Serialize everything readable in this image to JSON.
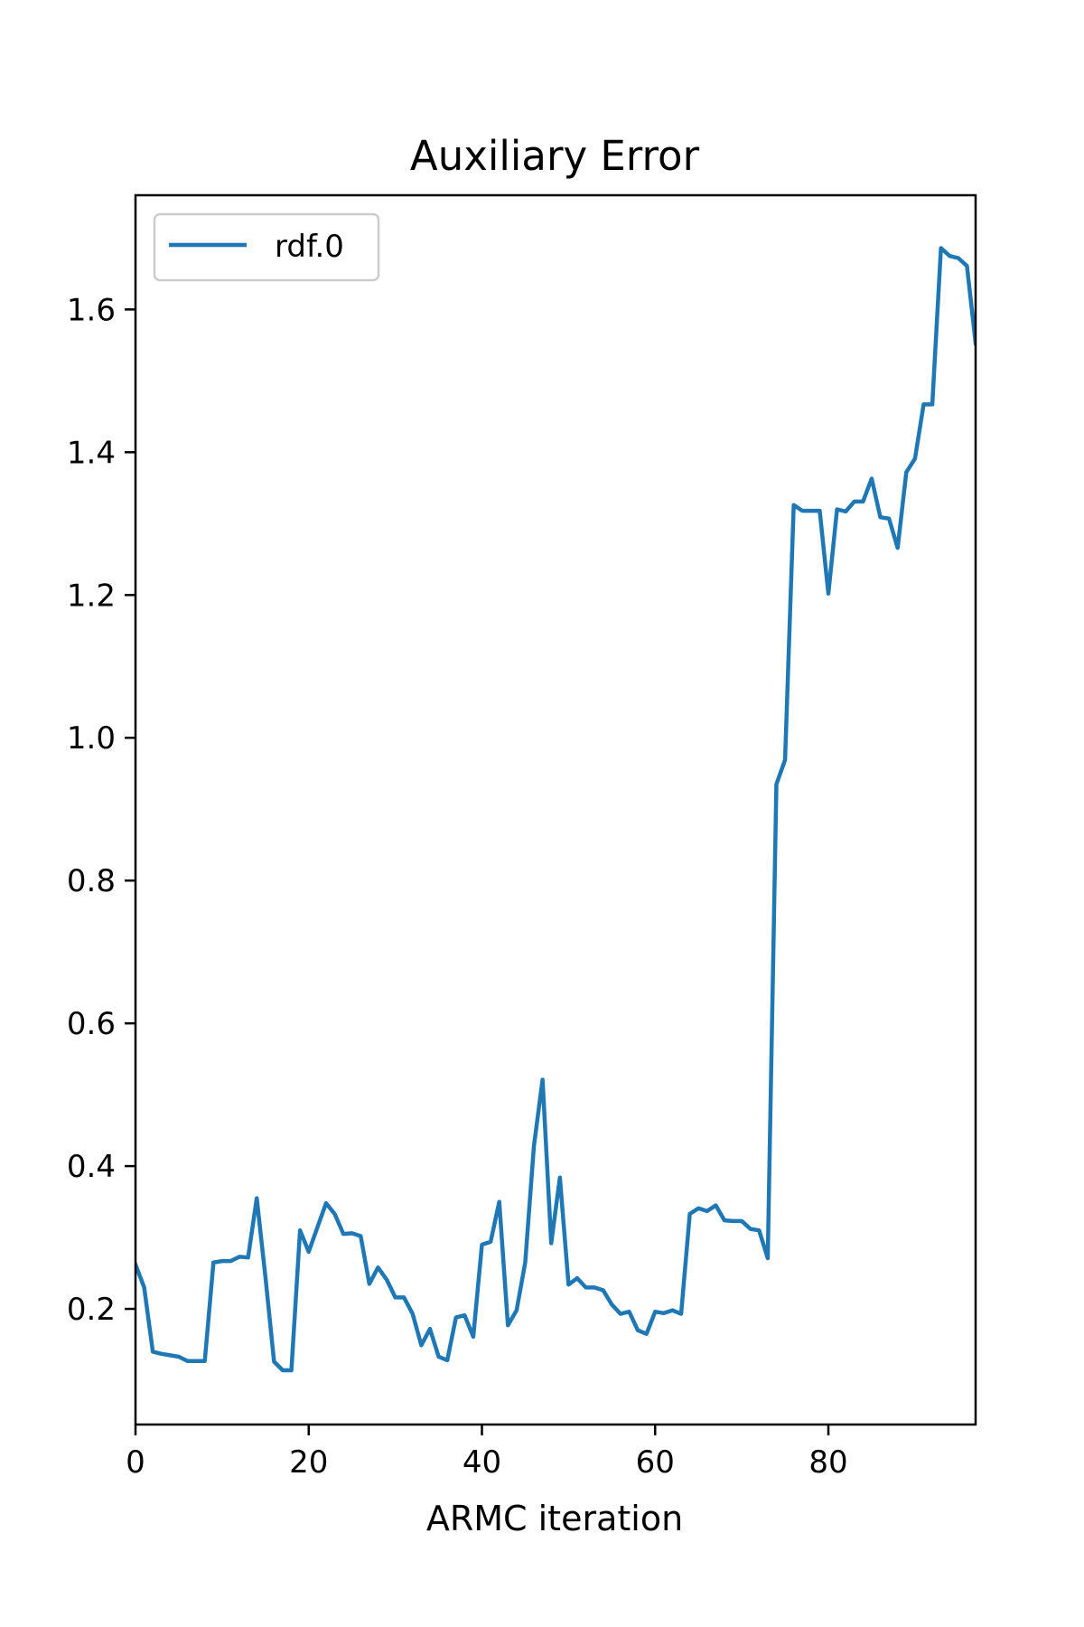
{
  "chart_data": {
    "type": "line",
    "title": "Auxiliary Error",
    "xlabel": "ARMC iteration",
    "ylabel": "",
    "xlim": [
      0,
      97
    ],
    "ylim": [
      0.038,
      1.76
    ],
    "xticks": [
      0,
      20,
      40,
      60,
      80
    ],
    "xtick_labels": [
      "0",
      "20",
      "40",
      "60",
      "80"
    ],
    "yticks": [
      0.2,
      0.4,
      0.6,
      0.8,
      1.0,
      1.2,
      1.4,
      1.6
    ],
    "ytick_labels": [
      "0.2",
      "0.4",
      "0.6",
      "0.8",
      "1.0",
      "1.2",
      "1.4",
      "1.6"
    ],
    "grid": false,
    "legend_position": "upper-left",
    "colors": {
      "series": "#1f77b4",
      "axes": "#000000",
      "legend_border": "#cccccc"
    },
    "series": [
      {
        "name": "rdf.0",
        "x": [
          0,
          1,
          2,
          3,
          4,
          5,
          6,
          7,
          8,
          9,
          10,
          11,
          12,
          13,
          14,
          15,
          16,
          17,
          18,
          19,
          20,
          21,
          22,
          23,
          24,
          25,
          26,
          27,
          28,
          29,
          30,
          31,
          32,
          33,
          34,
          35,
          36,
          37,
          38,
          39,
          40,
          41,
          42,
          43,
          44,
          45,
          46,
          47,
          48,
          49,
          50,
          51,
          52,
          53,
          54,
          55,
          56,
          57,
          58,
          59,
          60,
          61,
          62,
          63,
          64,
          65,
          66,
          67,
          68,
          69,
          70,
          71,
          72,
          73,
          74,
          75,
          76,
          77,
          78,
          79,
          80,
          81,
          82,
          83,
          84,
          85,
          86,
          87,
          88,
          89,
          90,
          91,
          92,
          93,
          94,
          95,
          96,
          97
        ],
        "values": [
          0.262,
          0.23,
          0.14,
          0.137,
          0.135,
          0.133,
          0.127,
          0.127,
          0.127,
          0.265,
          0.267,
          0.267,
          0.273,
          0.272,
          0.355,
          0.245,
          0.126,
          0.114,
          0.114,
          0.31,
          0.28,
          0.314,
          0.348,
          0.333,
          0.305,
          0.306,
          0.302,
          0.235,
          0.258,
          0.241,
          0.216,
          0.216,
          0.193,
          0.149,
          0.172,
          0.133,
          0.128,
          0.188,
          0.191,
          0.161,
          0.29,
          0.294,
          0.35,
          0.177,
          0.198,
          0.265,
          0.428,
          0.521,
          0.292,
          0.384,
          0.234,
          0.243,
          0.23,
          0.23,
          0.226,
          0.206,
          0.193,
          0.196,
          0.17,
          0.165,
          0.196,
          0.194,
          0.198,
          0.193,
          0.333,
          0.341,
          0.337,
          0.345,
          0.324,
          0.323,
          0.323,
          0.312,
          0.31,
          0.271,
          0.935,
          0.969,
          1.326,
          1.318,
          1.318,
          1.318,
          1.202,
          1.32,
          1.317,
          1.331,
          1.331,
          1.363,
          1.309,
          1.307,
          1.266,
          1.372,
          1.391,
          1.467,
          1.467,
          1.686,
          1.675,
          1.672,
          1.661,
          1.553
        ]
      }
    ]
  }
}
